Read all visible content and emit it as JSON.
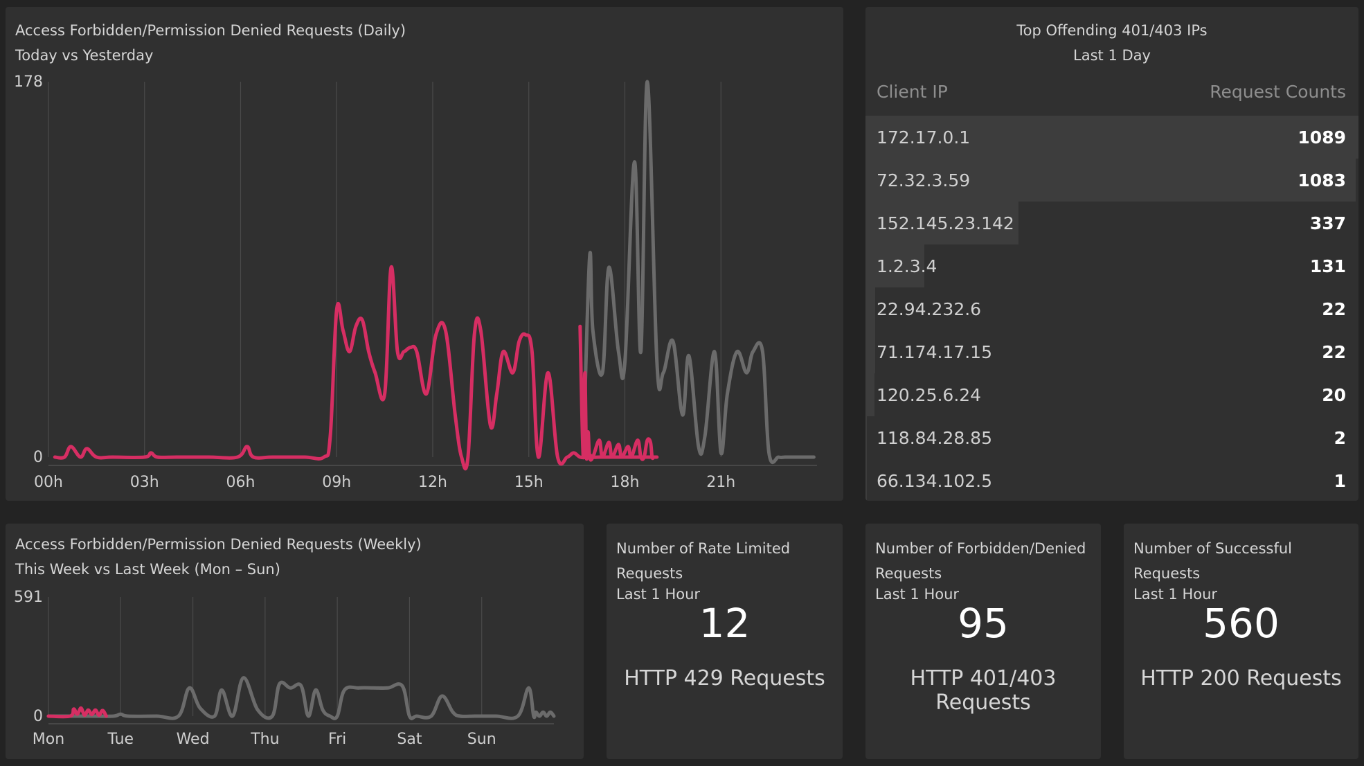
{
  "colors": {
    "today": "#d62e63",
    "yesterday": "#6b6b6b",
    "grid": "#4a4a4a"
  },
  "daily_panel": {
    "title": "Access Forbidden/Permission Denied Requests (Daily)",
    "subtitle": "Today vs Yesterday"
  },
  "weekly_panel": {
    "title": "Access Forbidden/Permission Denied Requests (Weekly)",
    "subtitle": "This Week vs Last Week (Mon – Sun)"
  },
  "ip_panel": {
    "title": "Top Offending 401/403 IPs",
    "subtitle": "Last 1 Day",
    "col_ip": "Client IP",
    "col_count": "Request Counts",
    "rows": [
      {
        "ip": "172.17.0.1",
        "count": "1089",
        "share": 1.0
      },
      {
        "ip": "72.32.3.59",
        "count": "1083",
        "share": 0.995
      },
      {
        "ip": "152.145.23.142",
        "count": "337",
        "share": 0.31
      },
      {
        "ip": "1.2.3.4",
        "count": "131",
        "share": 0.12
      },
      {
        "ip": "22.94.232.6",
        "count": "22",
        "share": 0.02
      },
      {
        "ip": "71.174.17.15",
        "count": "22",
        "share": 0.02
      },
      {
        "ip": "120.25.6.24",
        "count": "20",
        "share": 0.018
      },
      {
        "ip": "118.84.28.85",
        "count": "2",
        "share": 0.002
      },
      {
        "ip": "66.134.102.5",
        "count": "1",
        "share": 0.001
      }
    ]
  },
  "stats": [
    {
      "title": "Number of Rate Limited Requests",
      "period": "Last 1 Hour",
      "value": "12",
      "label": "HTTP 429 Requests"
    },
    {
      "title": "Number of Forbidden/Denied Requests",
      "period": "Last 1 Hour",
      "value": "95",
      "label": "HTTP 401/403 Requests"
    },
    {
      "title": "Number of Successful Requests",
      "period": "Last 1 Hour",
      "value": "560",
      "label": "HTTP 200 Requests"
    }
  ],
  "chart_data": [
    {
      "type": "line",
      "xlim": [
        0,
        24
      ],
      "ylim": [
        0,
        178
      ],
      "y_ticks": [
        "0",
        "178"
      ],
      "x_ticks": [
        {
          "v": 0,
          "label": "00h"
        },
        {
          "v": 3,
          "label": "03h"
        },
        {
          "v": 6,
          "label": "06h"
        },
        {
          "v": 9,
          "label": "09h"
        },
        {
          "v": 12,
          "label": "12h"
        },
        {
          "v": 15,
          "label": "15h"
        },
        {
          "v": 18,
          "label": "18h"
        },
        {
          "v": 21,
          "label": "21h"
        }
      ],
      "grid": true,
      "series": [
        {
          "key": "yesterday",
          "x": [
            16.7,
            16.9,
            17.0,
            17.3,
            17.5,
            17.8,
            18.0,
            18.3,
            18.5,
            18.7,
            19.0,
            19.2,
            19.5,
            19.8,
            20.0,
            20.3,
            20.5,
            20.8,
            21.0,
            21.2,
            21.5,
            21.8,
            22.0,
            22.3,
            22.5,
            22.8,
            23.0,
            23.2,
            23.5,
            23.7,
            23.9
          ],
          "y": [
            0,
            95,
            60,
            40,
            90,
            50,
            45,
            140,
            50,
            178,
            45,
            40,
            55,
            20,
            48,
            5,
            10,
            50,
            2,
            30,
            50,
            40,
            50,
            50,
            2,
            0,
            0,
            0,
            0,
            0,
            0
          ]
        },
        {
          "key": "today",
          "x": [
            0.2,
            0.5,
            0.7,
            1.0,
            1.2,
            1.5,
            2.0,
            3.0,
            3.2,
            3.4,
            4.0,
            5.0,
            5.9,
            6.2,
            6.4,
            7.0,
            8.0,
            8.6,
            8.8,
            9.0,
            9.2,
            9.4,
            9.6,
            9.8,
            10.0,
            10.2,
            10.5,
            10.7,
            10.9,
            11.1,
            11.3,
            11.5,
            11.8,
            12.1,
            12.4,
            12.7,
            12.9,
            13.1,
            13.3,
            13.5,
            13.8,
            14.0,
            14.2,
            14.5,
            14.7,
            14.9,
            15.1,
            15.3,
            15.6,
            15.9,
            16.2,
            16.4,
            16.6,
            16.8,
            16.9,
            17.0,
            17.2,
            17.4,
            17.6,
            17.8,
            18.0,
            18.2,
            18.4,
            18.6,
            18.8,
            19.0
          ],
          "y": [
            0,
            0,
            5,
            0,
            4,
            0,
            0,
            0,
            2,
            0,
            0,
            0,
            0,
            5,
            0,
            0,
            0,
            0,
            10,
            70,
            60,
            50,
            62,
            65,
            50,
            40,
            30,
            90,
            50,
            50,
            52,
            50,
            30,
            58,
            60,
            20,
            0,
            0,
            58,
            60,
            15,
            30,
            50,
            40,
            55,
            58,
            50,
            0,
            40,
            0,
            0,
            2,
            0,
            0,
            1,
            0,
            0,
            0,
            0,
            0,
            0,
            0,
            0,
            0,
            0,
            0
          ]
        },
        {
          "key": "today_tail",
          "x": [
            16.6,
            16.7,
            16.75,
            16.8,
            16.85,
            16.9,
            17.0,
            17.2,
            17.3,
            17.5,
            17.6,
            17.8,
            17.9,
            18.1,
            18.2,
            18.4,
            18.5,
            18.6,
            18.7,
            18.8,
            18.85,
            18.9
          ],
          "y": [
            62,
            0,
            40,
            0,
            12,
            0,
            0,
            8,
            0,
            7,
            0,
            6,
            0,
            5,
            0,
            8,
            0,
            0,
            8,
            7,
            0,
            0
          ]
        }
      ]
    },
    {
      "type": "line",
      "xlim": [
        0,
        7
      ],
      "ylim": [
        0,
        591
      ],
      "y_ticks": [
        "0",
        "591"
      ],
      "x_ticks": [
        {
          "v": 0,
          "label": "Mon"
        },
        {
          "v": 1,
          "label": "Tue"
        },
        {
          "v": 2,
          "label": "Wed"
        },
        {
          "v": 3,
          "label": "Thu"
        },
        {
          "v": 4,
          "label": "Fri"
        },
        {
          "v": 5,
          "label": "Sat"
        },
        {
          "v": 6,
          "label": "Sun"
        }
      ],
      "grid": true,
      "series": [
        {
          "key": "last_week",
          "x": [
            0.0,
            0.6,
            0.9,
            1.0,
            1.1,
            1.5,
            1.8,
            1.95,
            2.1,
            2.3,
            2.4,
            2.55,
            2.7,
            2.9,
            3.1,
            3.2,
            3.35,
            3.5,
            3.6,
            3.7,
            3.8,
            3.9,
            4.0,
            4.1,
            4.3,
            4.5,
            4.7,
            4.9,
            5.0,
            5.1,
            5.3,
            5.45,
            5.6,
            5.7,
            5.9,
            6.2,
            6.5,
            6.65,
            6.72,
            6.75,
            6.8,
            6.85,
            6.9,
            6.95,
            7.0
          ],
          "y": [
            0,
            0,
            0,
            10,
            0,
            0,
            0,
            140,
            40,
            0,
            130,
            0,
            190,
            30,
            0,
            160,
            140,
            150,
            0,
            130,
            30,
            0,
            0,
            130,
            140,
            140,
            140,
            150,
            0,
            0,
            0,
            100,
            20,
            0,
            0,
            0,
            0,
            140,
            0,
            20,
            0,
            20,
            0,
            20,
            0
          ]
        },
        {
          "key": "this_week",
          "x": [
            0.0,
            0.3,
            0.35,
            0.4,
            0.45,
            0.5,
            0.55,
            0.6,
            0.65,
            0.7,
            0.75,
            0.8
          ],
          "y": [
            0,
            0,
            35,
            10,
            40,
            5,
            30,
            8,
            30,
            5,
            28,
            0
          ]
        }
      ]
    }
  ]
}
